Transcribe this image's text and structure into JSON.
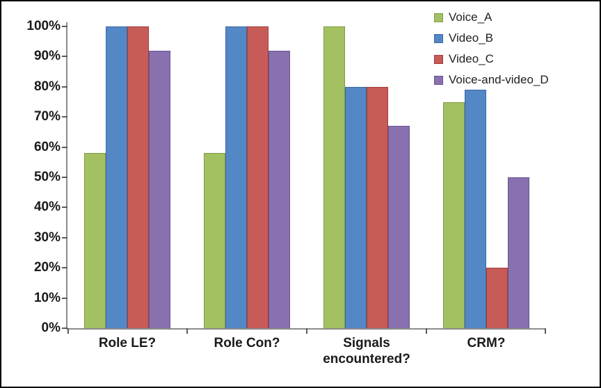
{
  "figure": {
    "background": "#FFFFFF",
    "border_color": "#000000"
  },
  "chart_data": {
    "type": "bar",
    "title": "",
    "xlabel": "",
    "ylabel": "",
    "categories": [
      "Role LE?",
      "Role Con?",
      "Signals encountered?",
      "CRM?"
    ],
    "series": [
      {
        "name": "Voice_A",
        "color": "#A3C162",
        "border_color": "#7E9C45",
        "values": [
          58,
          58,
          100,
          75
        ]
      },
      {
        "name": "Video_B",
        "color": "#5487C5",
        "border_color": "#3D69A2",
        "values": [
          100,
          100,
          80,
          79
        ]
      },
      {
        "name": "Video_C",
        "color": "#C65B57",
        "border_color": "#A03E3B",
        "values": [
          100,
          100,
          80,
          20
        ]
      },
      {
        "name": "Voice-and-video_D",
        "color": "#8871AE",
        "border_color": "#685293",
        "values": [
          92,
          92,
          67,
          50
        ]
      }
    ],
    "y_axis": {
      "min": 0,
      "max": 100,
      "step": 10,
      "suffix": "%",
      "tick_labels": [
        "0%",
        "10%",
        "20%",
        "30%",
        "40%",
        "50%",
        "60%",
        "70%",
        "80%",
        "90%",
        "100%"
      ]
    },
    "legend": {
      "position": "top-right",
      "entries": [
        "Voice_A",
        "Video_B",
        "Video_C",
        "Voice-and-video_D"
      ]
    },
    "grid": false
  },
  "style": {
    "axis_color": "#8C8C8C",
    "tick_color": "#5A5A5A",
    "text_color": "#1A1A1A"
  }
}
